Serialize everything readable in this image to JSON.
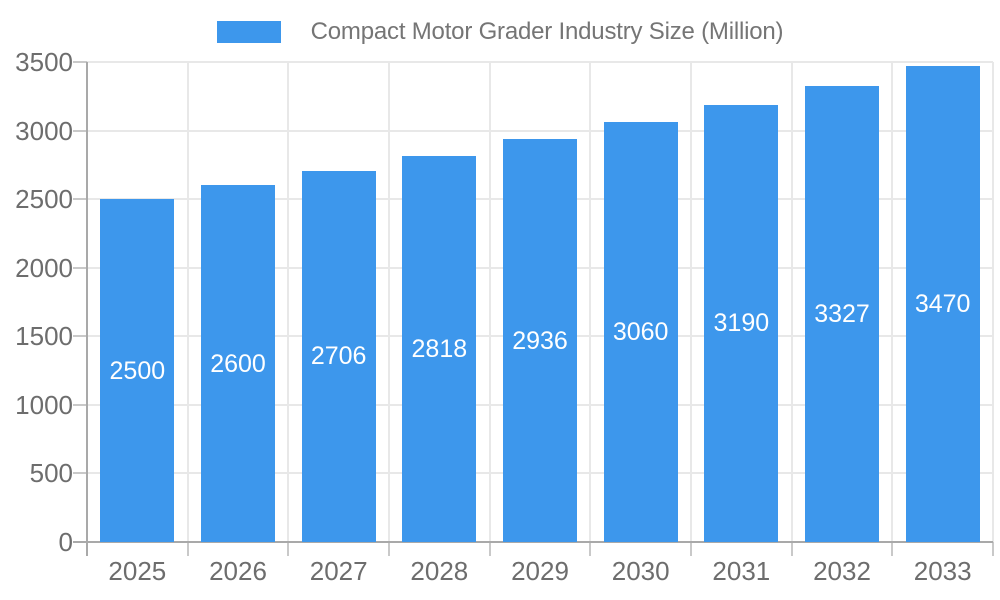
{
  "legend": {
    "label": "Compact Motor Grader Industry Size (Million)",
    "position": "top-center"
  },
  "chart_data": {
    "type": "bar",
    "title": "Compact Motor Grader Industry Size (Million)",
    "categories": [
      "2025",
      "2026",
      "2027",
      "2028",
      "2029",
      "2030",
      "2031",
      "2032",
      "2033"
    ],
    "values": [
      2500,
      2600,
      2706,
      2818,
      2936,
      3060,
      3190,
      3327,
      3470
    ],
    "xlabel": "",
    "ylabel": "",
    "ylim": [
      0,
      3500
    ],
    "yticks": [
      0,
      500,
      1000,
      1500,
      2000,
      2500,
      3000,
      3500
    ],
    "grid": true,
    "bar_labels_inside": true,
    "legend_position": "top-center",
    "colors": {
      "bar": "#3D97EC",
      "bar_label": "#FFFFFF",
      "axis_label": "#6D6D6D",
      "legend_text": "#757575",
      "gridline": "#E8E8E8",
      "axis_line": "#A9A9A9",
      "tick": "#C9C9C9",
      "background": "#FFFFFF"
    }
  }
}
